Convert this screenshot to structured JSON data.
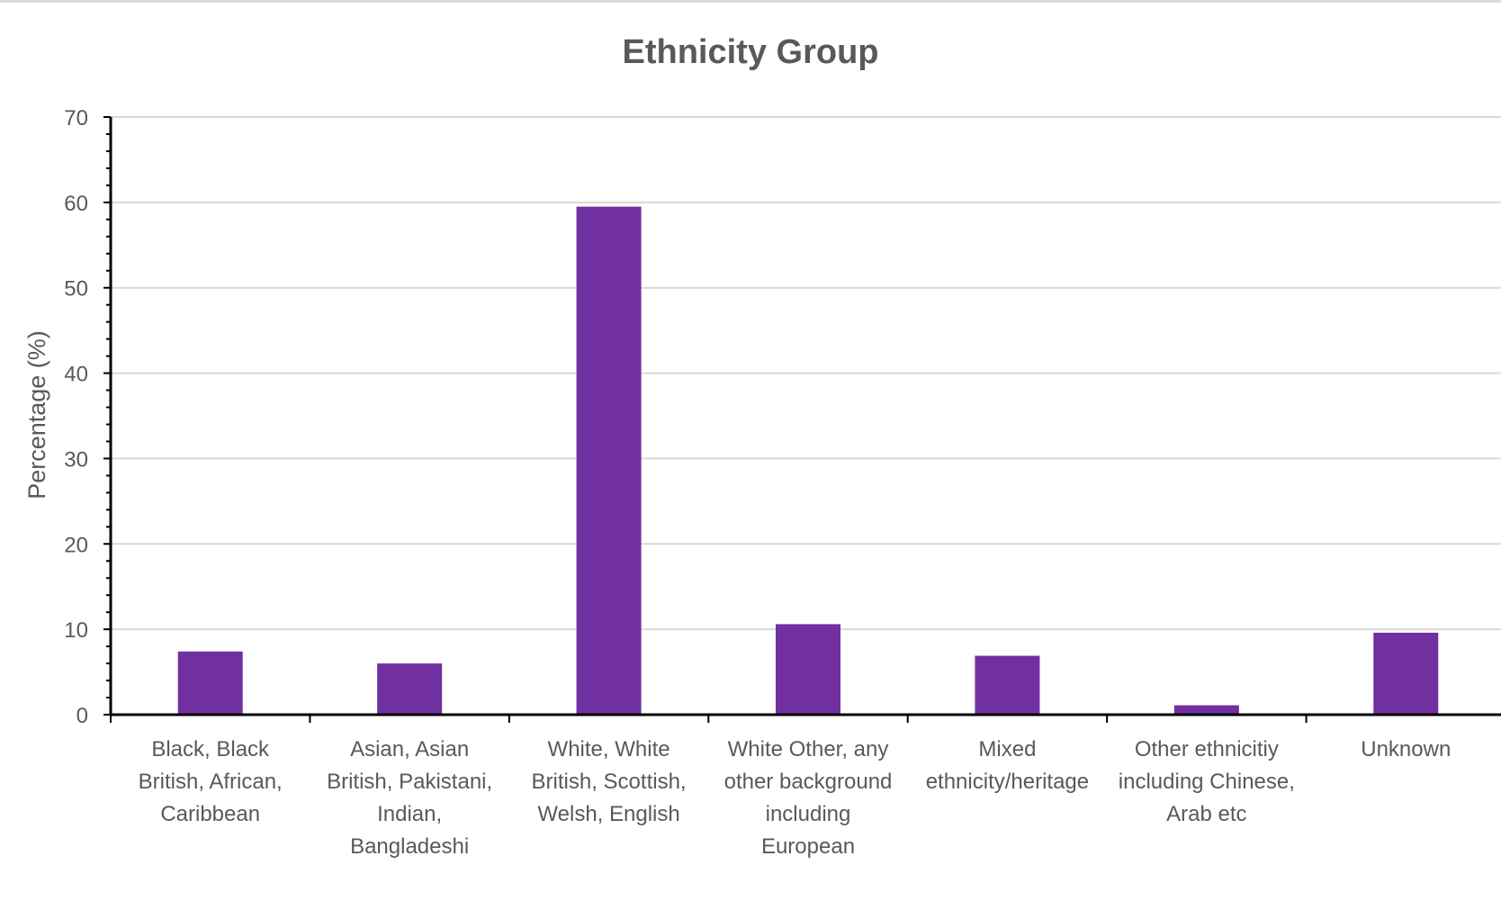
{
  "chart_data": {
    "type": "bar",
    "title": "Ethnicity Group",
    "xlabel": "",
    "ylabel": "Percentage (%)",
    "ylim": [
      0,
      70
    ],
    "yticks": [
      0,
      10,
      20,
      30,
      40,
      50,
      60,
      70
    ],
    "grid": true,
    "legend": "none",
    "bar_color": "#7030A0",
    "categories": [
      [
        "Black, Black",
        "British, African,",
        "Caribbean"
      ],
      [
        "Asian, Asian",
        "British, Pakistani,",
        "Indian,",
        "Bangladeshi"
      ],
      [
        "White, White",
        "British, Scottish,",
        "Welsh, English"
      ],
      [
        "White Other, any",
        "other background",
        "including",
        "European"
      ],
      [
        "Mixed",
        "ethnicity/heritage"
      ],
      [
        "Other ethnicitiy",
        "including Chinese,",
        "Arab etc"
      ],
      [
        "Unknown"
      ]
    ],
    "values": [
      7.4,
      6.0,
      59.5,
      10.6,
      6.9,
      1.1,
      9.6
    ]
  }
}
